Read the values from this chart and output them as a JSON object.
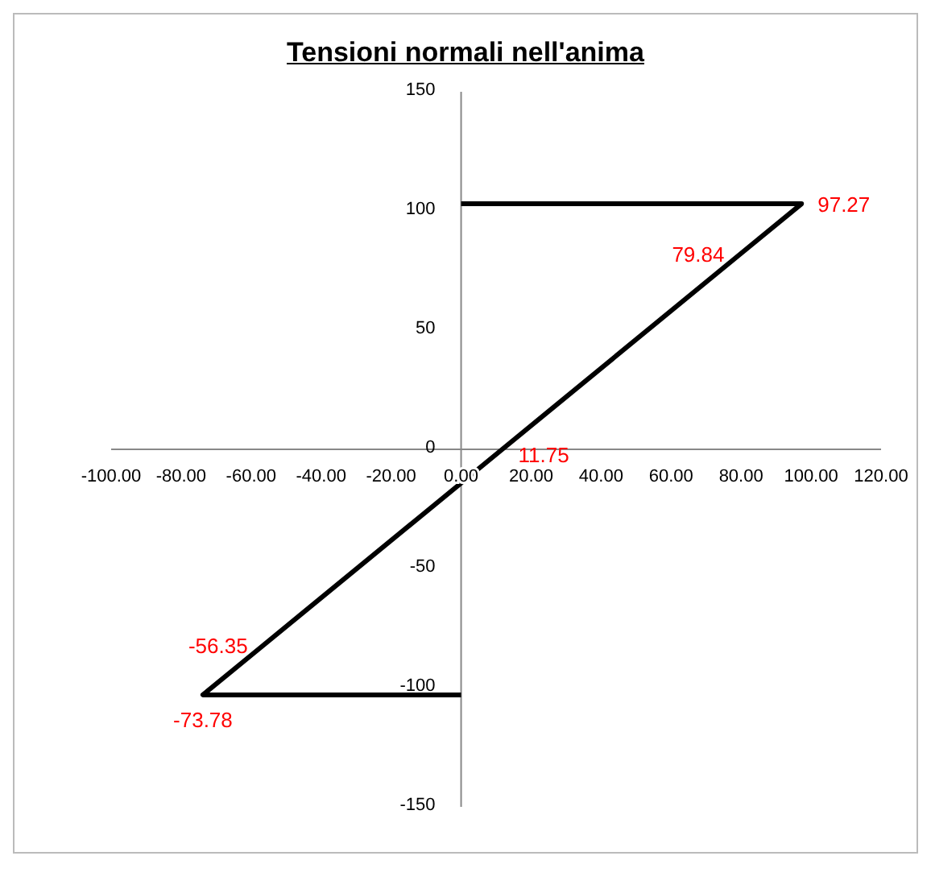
{
  "chart_data": {
    "type": "line",
    "title": "Tensioni normali nell'anima",
    "x": [
      0,
      97.27,
      79.84,
      11.75,
      -56.35,
      -73.78,
      0
    ],
    "series": [
      {
        "color": "#000000",
        "values": [
          103,
          103,
          82,
          0,
          -82,
          -103,
          -103
        ]
      }
    ],
    "annotations": [
      {
        "text": "97.27",
        "x": 97.27,
        "y": 103
      },
      {
        "text": "79.84",
        "x": 79.84,
        "y": 82
      },
      {
        "text": "11.75",
        "x": 11.75,
        "y": 0
      },
      {
        "text": "-56.35",
        "x": -56.35,
        "y": -82
      },
      {
        "text": "-73.78",
        "x": -73.78,
        "y": -103
      }
    ],
    "xlim": [
      -100,
      120
    ],
    "xticks": [
      {
        "value": -100,
        "label": "-100.00"
      },
      {
        "value": -80,
        "label": "-80.00"
      },
      {
        "value": -60,
        "label": "-60.00"
      },
      {
        "value": -40,
        "label": "-40.00"
      },
      {
        "value": -20,
        "label": "-20.00"
      },
      {
        "value": 0,
        "label": "0.00"
      },
      {
        "value": 20,
        "label": "20.00"
      },
      {
        "value": 40,
        "label": "40.00"
      },
      {
        "value": 60,
        "label": "60.00"
      },
      {
        "value": 80,
        "label": "80.00"
      },
      {
        "value": 100,
        "label": "100.00"
      },
      {
        "value": 120,
        "label": "120.00"
      }
    ],
    "ylim": [
      -150,
      150
    ],
    "yticks": [
      -150,
      -100,
      -50,
      0,
      50,
      100,
      150
    ],
    "marker": "none",
    "line_style": "solid"
  }
}
